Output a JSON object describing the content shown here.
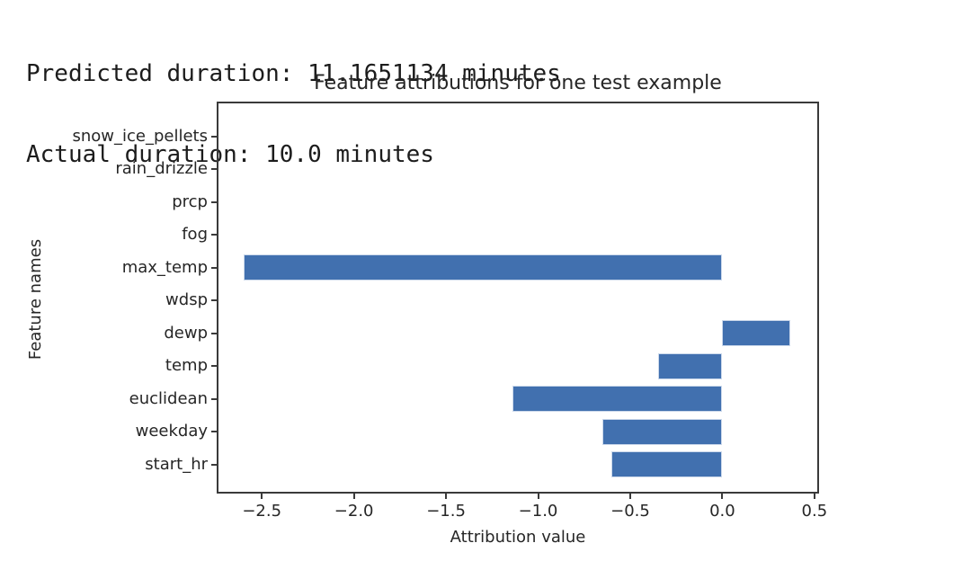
{
  "stdout": {
    "line1": "Predicted duration: 11.1651134 minutes",
    "line2": "Actual duration: 10.0 minutes"
  },
  "chart_data": {
    "type": "bar",
    "orientation": "horizontal",
    "title": "Feature attributions for one test example",
    "xlabel": "Attribution value",
    "ylabel": "Feature names",
    "categories_top_to_bottom": [
      "snow_ice_pellets",
      "rain_drizzle",
      "prcp",
      "fog",
      "max_temp",
      "wdsp",
      "dewp",
      "temp",
      "euclidean",
      "weekday",
      "start_hr"
    ],
    "values_top_to_bottom": [
      0,
      0,
      0,
      0,
      -2.6,
      0,
      0.37,
      -0.35,
      -1.14,
      -0.65,
      -0.6
    ],
    "xticks": [
      -2.5,
      -2.0,
      -1.5,
      -1.0,
      -0.5,
      0.0,
      0.5
    ],
    "xtick_labels": [
      "−2.5",
      "−2.0",
      "−1.5",
      "−1.0",
      "−0.5",
      "0.0",
      "0.5"
    ],
    "xlim": [
      -2.745,
      0.525
    ],
    "grid": false,
    "legend": "none",
    "bar_color": "#4170af",
    "bar_edge_color": "#ccd9eb",
    "axes_color": "#3a3a3a"
  }
}
